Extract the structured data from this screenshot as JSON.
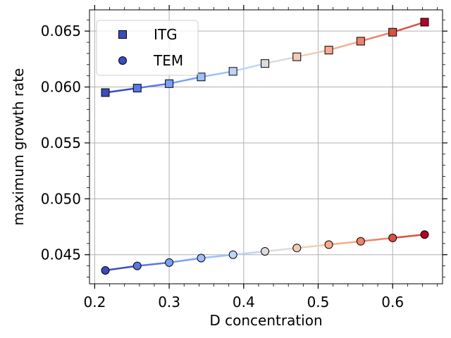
{
  "chart_data": {
    "type": "line",
    "title": "",
    "xlabel": "D concentration",
    "ylabel": "maximum growth rate",
    "xlim": [
      0.193,
      0.667
    ],
    "ylim": [
      0.0424,
      0.0669
    ],
    "grid": true,
    "legend_position": "top-left",
    "colormap": "coolwarm",
    "x": [
      0.2143,
      0.2571,
      0.3,
      0.3429,
      0.3857,
      0.4286,
      0.4714,
      0.5143,
      0.5571,
      0.6,
      0.6429
    ],
    "x_ticks": [
      0.2,
      0.3,
      0.4,
      0.5,
      0.6
    ],
    "x_tick_labels": [
      "0.2",
      "0.3",
      "0.4",
      "0.5",
      "0.6"
    ],
    "y_ticks": [
      0.045,
      0.05,
      0.055,
      0.06,
      0.065
    ],
    "y_tick_labels": [
      "0.045",
      "0.050",
      "0.055",
      "0.060",
      "0.065"
    ],
    "point_colors": [
      "#3b4cc0",
      "#5a78e4",
      "#7b9ff9",
      "#9ebeff",
      "#c0d4f5",
      "#dddcdc",
      "#f2cbb7",
      "#f7ac8e",
      "#ee8468",
      "#d65244",
      "#b40426"
    ],
    "series": [
      {
        "name": "ITG",
        "marker": "square",
        "values": [
          0.0595,
          0.0599,
          0.0603,
          0.0609,
          0.0614,
          0.0621,
          0.0627,
          0.0633,
          0.0641,
          0.0649,
          0.0658
        ]
      },
      {
        "name": "TEM",
        "marker": "circle",
        "values": [
          0.0436,
          0.044,
          0.0443,
          0.0447,
          0.045,
          0.0453,
          0.0456,
          0.0459,
          0.0462,
          0.0465,
          0.0468
        ]
      }
    ]
  }
}
